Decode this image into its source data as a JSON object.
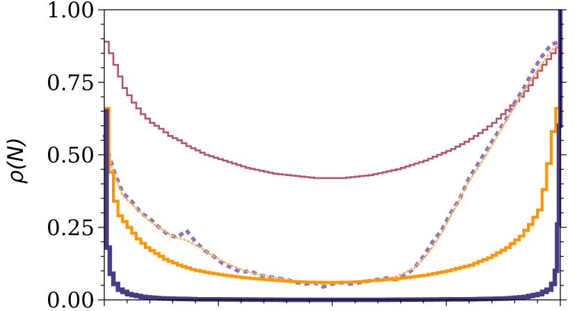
{
  "chart_data": {
    "type": "line",
    "title": "",
    "xlabel": "",
    "ylabel": "ρ(N)",
    "ylim": [
      0,
      1
    ],
    "xlim": [
      0,
      1
    ],
    "y_ticks": [
      "0.00",
      "0.25",
      "0.50",
      "0.75",
      "1.00"
    ],
    "grid": false,
    "legend": "none",
    "series": [
      {
        "color": "#b5516a",
        "style": "step-thin",
        "points": [
          [
            0.0,
            0.89
          ],
          [
            0.02,
            0.81
          ],
          [
            0.04,
            0.73
          ],
          [
            0.06,
            0.68
          ],
          [
            0.08,
            0.64
          ],
          [
            0.1,
            0.61
          ],
          [
            0.12,
            0.59
          ],
          [
            0.14,
            0.565
          ],
          [
            0.16,
            0.55
          ],
          [
            0.18,
            0.53
          ],
          [
            0.2,
            0.515
          ],
          [
            0.22,
            0.5
          ],
          [
            0.25,
            0.485
          ],
          [
            0.28,
            0.47
          ],
          [
            0.31,
            0.455
          ],
          [
            0.34,
            0.445
          ],
          [
            0.37,
            0.435
          ],
          [
            0.4,
            0.43
          ],
          [
            0.43,
            0.425
          ],
          [
            0.46,
            0.42
          ],
          [
            0.49,
            0.42
          ],
          [
            0.52,
            0.42
          ],
          [
            0.55,
            0.425
          ],
          [
            0.58,
            0.43
          ],
          [
            0.61,
            0.44
          ],
          [
            0.64,
            0.45
          ],
          [
            0.67,
            0.465
          ],
          [
            0.7,
            0.48
          ],
          [
            0.73,
            0.5
          ],
          [
            0.76,
            0.52
          ],
          [
            0.79,
            0.545
          ],
          [
            0.82,
            0.575
          ],
          [
            0.85,
            0.61
          ],
          [
            0.88,
            0.655
          ],
          [
            0.91,
            0.7
          ],
          [
            0.93,
            0.74
          ],
          [
            0.95,
            0.79
          ],
          [
            0.97,
            0.83
          ],
          [
            0.99,
            0.87
          ],
          [
            1.0,
            0.89
          ]
        ]
      },
      {
        "color": "#ff9500",
        "style": "step-thick",
        "points": [
          [
            0.0,
            0.66
          ],
          [
            0.01,
            0.44
          ],
          [
            0.02,
            0.34
          ],
          [
            0.03,
            0.29
          ],
          [
            0.05,
            0.25
          ],
          [
            0.07,
            0.21
          ],
          [
            0.09,
            0.18
          ],
          [
            0.11,
            0.16
          ],
          [
            0.13,
            0.14
          ],
          [
            0.16,
            0.12
          ],
          [
            0.19,
            0.105
          ],
          [
            0.22,
            0.095
          ],
          [
            0.26,
            0.085
          ],
          [
            0.3,
            0.077
          ],
          [
            0.35,
            0.07
          ],
          [
            0.4,
            0.064
          ],
          [
            0.45,
            0.061
          ],
          [
            0.5,
            0.06
          ],
          [
            0.55,
            0.062
          ],
          [
            0.6,
            0.068
          ],
          [
            0.65,
            0.075
          ],
          [
            0.7,
            0.085
          ],
          [
            0.75,
            0.1
          ],
          [
            0.8,
            0.12
          ],
          [
            0.84,
            0.145
          ],
          [
            0.88,
            0.18
          ],
          [
            0.91,
            0.22
          ],
          [
            0.93,
            0.26
          ],
          [
            0.95,
            0.31
          ],
          [
            0.96,
            0.38
          ],
          [
            0.97,
            0.47
          ],
          [
            0.98,
            0.58
          ],
          [
            0.99,
            0.66
          ],
          [
            1.0,
            0.66
          ]
        ]
      },
      {
        "color": "#4b3a86",
        "style": "step-heavy",
        "points": [
          [
            0.0,
            0.65
          ],
          [
            0.005,
            0.18
          ],
          [
            0.012,
            0.09
          ],
          [
            0.02,
            0.055
          ],
          [
            0.03,
            0.035
          ],
          [
            0.05,
            0.02
          ],
          [
            0.08,
            0.01
          ],
          [
            0.12,
            0.005
          ],
          [
            0.2,
            0.002
          ],
          [
            0.4,
            0.0
          ],
          [
            0.6,
            0.0
          ],
          [
            0.8,
            0.002
          ],
          [
            0.88,
            0.005
          ],
          [
            0.92,
            0.01
          ],
          [
            0.95,
            0.02
          ],
          [
            0.97,
            0.035
          ],
          [
            0.98,
            0.055
          ],
          [
            0.988,
            0.1
          ],
          [
            0.993,
            0.26
          ],
          [
            0.997,
            0.6
          ],
          [
            1.0,
            1.0
          ]
        ]
      },
      {
        "color": "#8878b8",
        "style": "dashed-thick",
        "points": [
          [
            0.0,
            0.57
          ],
          [
            0.01,
            0.5
          ],
          [
            0.02,
            0.45
          ],
          [
            0.03,
            0.41
          ],
          [
            0.04,
            0.37
          ],
          [
            0.06,
            0.34
          ],
          [
            0.08,
            0.3
          ],
          [
            0.1,
            0.28
          ],
          [
            0.12,
            0.25
          ],
          [
            0.14,
            0.225
          ],
          [
            0.16,
            0.215
          ],
          [
            0.18,
            0.24
          ],
          [
            0.2,
            0.2
          ],
          [
            0.22,
            0.17
          ],
          [
            0.24,
            0.15
          ],
          [
            0.26,
            0.125
          ],
          [
            0.28,
            0.11
          ],
          [
            0.3,
            0.095
          ],
          [
            0.32,
            0.1
          ],
          [
            0.34,
            0.085
          ],
          [
            0.36,
            0.08
          ],
          [
            0.38,
            0.075
          ],
          [
            0.4,
            0.07
          ],
          [
            0.42,
            0.06
          ],
          [
            0.44,
            0.055
          ],
          [
            0.46,
            0.06
          ],
          [
            0.48,
            0.045
          ],
          [
            0.5,
            0.055
          ],
          [
            0.52,
            0.06
          ],
          [
            0.54,
            0.055
          ],
          [
            0.56,
            0.06
          ],
          [
            0.58,
            0.065
          ],
          [
            0.6,
            0.07
          ],
          [
            0.62,
            0.075
          ],
          [
            0.64,
            0.07
          ],
          [
            0.66,
            0.085
          ],
          [
            0.68,
            0.11
          ],
          [
            0.7,
            0.15
          ],
          [
            0.72,
            0.2
          ],
          [
            0.74,
            0.24
          ],
          [
            0.76,
            0.3
          ],
          [
            0.78,
            0.35
          ],
          [
            0.8,
            0.42
          ],
          [
            0.82,
            0.47
          ],
          [
            0.84,
            0.52
          ],
          [
            0.86,
            0.57
          ],
          [
            0.88,
            0.62
          ],
          [
            0.9,
            0.68
          ],
          [
            0.92,
            0.73
          ],
          [
            0.94,
            0.79
          ],
          [
            0.96,
            0.84
          ],
          [
            0.98,
            0.88
          ],
          [
            1.0,
            0.89
          ]
        ]
      },
      {
        "color": "#f8b46a",
        "style": "dotted",
        "points": [
          [
            0.0,
            0.56
          ],
          [
            0.02,
            0.44
          ],
          [
            0.04,
            0.36
          ],
          [
            0.06,
            0.33
          ],
          [
            0.08,
            0.3
          ],
          [
            0.1,
            0.27
          ],
          [
            0.12,
            0.25
          ],
          [
            0.15,
            0.22
          ],
          [
            0.18,
            0.205
          ],
          [
            0.21,
            0.18
          ],
          [
            0.24,
            0.15
          ],
          [
            0.27,
            0.125
          ],
          [
            0.3,
            0.105
          ],
          [
            0.33,
            0.09
          ],
          [
            0.36,
            0.08
          ],
          [
            0.4,
            0.07
          ],
          [
            0.44,
            0.06
          ],
          [
            0.48,
            0.055
          ],
          [
            0.52,
            0.058
          ],
          [
            0.56,
            0.062
          ],
          [
            0.6,
            0.068
          ],
          [
            0.64,
            0.08
          ],
          [
            0.68,
            0.11
          ],
          [
            0.71,
            0.16
          ],
          [
            0.74,
            0.23
          ],
          [
            0.77,
            0.32
          ],
          [
            0.8,
            0.41
          ],
          [
            0.83,
            0.48
          ],
          [
            0.86,
            0.56
          ],
          [
            0.89,
            0.64
          ],
          [
            0.92,
            0.72
          ],
          [
            0.95,
            0.79
          ],
          [
            0.98,
            0.86
          ],
          [
            1.0,
            0.88
          ]
        ]
      }
    ]
  }
}
